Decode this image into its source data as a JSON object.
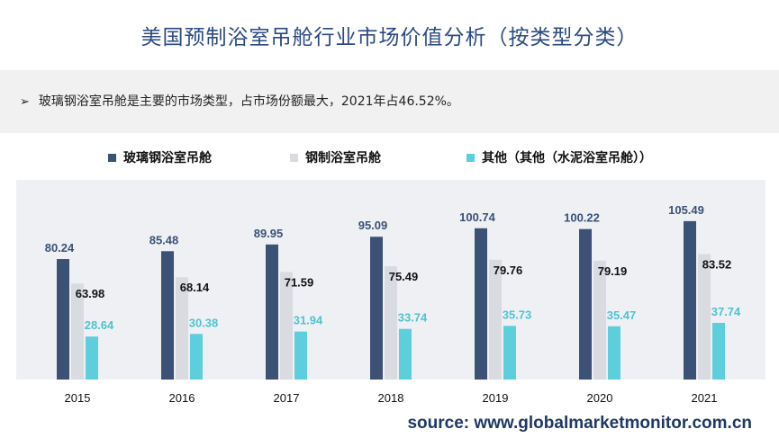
{
  "page": {
    "title": "美国预制浴室吊舱行业市场价值分析（按类型分类）",
    "note_marker": "➢",
    "note": "玻璃钢浴室吊舱是主要的市场类型，占市场份额最大，2021年占46.52%。",
    "source": "source: www.globalmarketmonitor.com.cn"
  },
  "colors": {
    "title": "#2b4a84",
    "series": [
      "#3b5176",
      "#d9dbe0",
      "#5dcfdc"
    ],
    "series_label": [
      "#3b5176",
      "#111111",
      "#4ec3cf"
    ],
    "plot_bg": "#eef0f4"
  },
  "chart_data": {
    "type": "bar",
    "categories": [
      "2015",
      "2016",
      "2017",
      "2018",
      "2019",
      "2020",
      "2021"
    ],
    "series": [
      {
        "name": "玻璃钢浴室吊舱",
        "values": [
          80.24,
          85.48,
          89.95,
          95.09,
          100.74,
          100.22,
          105.49
        ]
      },
      {
        "name": "钢制浴室吊舱",
        "values": [
          63.98,
          68.14,
          71.59,
          75.49,
          79.76,
          79.19,
          83.52
        ]
      },
      {
        "name": "其他（其他（水泥浴室吊舱））",
        "values": [
          28.64,
          30.38,
          31.94,
          33.74,
          35.73,
          35.47,
          37.74
        ]
      }
    ],
    "legend_position": "top",
    "ylim": [
      0,
      115
    ],
    "grid": false,
    "data_labels": true
  }
}
